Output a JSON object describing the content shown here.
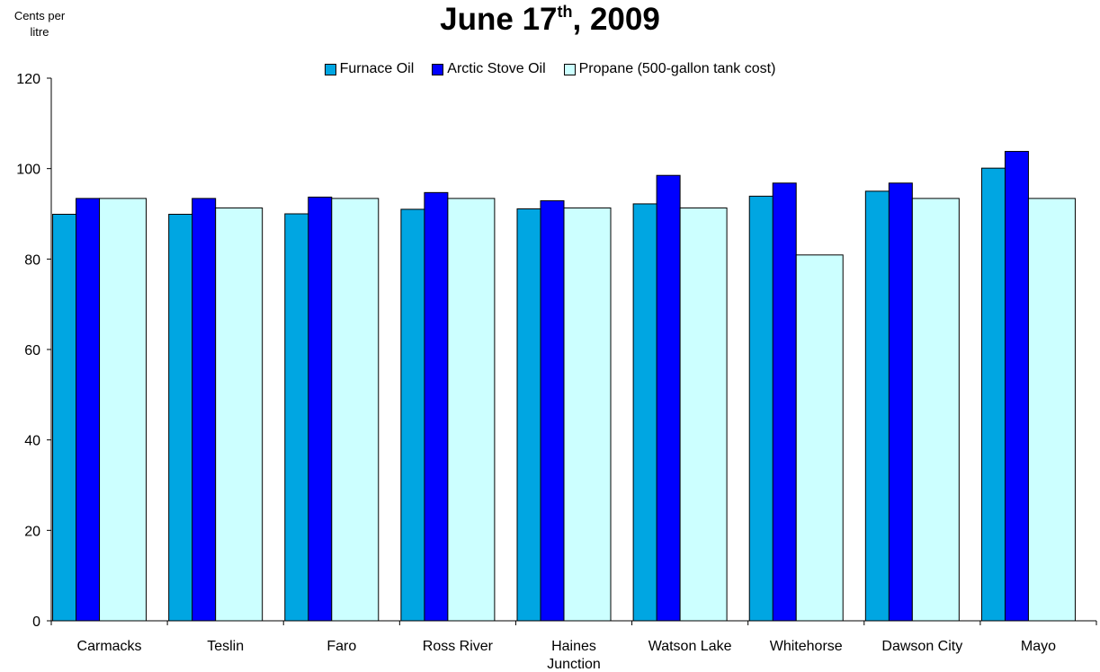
{
  "chart_data": {
    "type": "bar",
    "title": {
      "main": "June 17",
      "superscript": "th",
      "suffix": ", 2009"
    },
    "ylabel": "Cents per litre",
    "xlabel": "",
    "ylim": [
      0,
      120
    ],
    "yticks": [
      0,
      20,
      40,
      60,
      80,
      100,
      120
    ],
    "grid": false,
    "legend_position": "top-center",
    "categories": [
      "Carmacks",
      "Teslin",
      "Faro",
      "Ross River",
      "Haines Junction",
      "Watson Lake",
      "Whitehorse",
      "Dawson City",
      "Mayo"
    ],
    "category_label_lines": [
      [
        "Carmacks"
      ],
      [
        "Teslin"
      ],
      [
        "Faro"
      ],
      [
        "Ross River"
      ],
      [
        "Haines",
        "Junction"
      ],
      [
        "Watson Lake"
      ],
      [
        "Whitehorse"
      ],
      [
        "Dawson City"
      ],
      [
        "Mayo"
      ]
    ],
    "series": [
      {
        "name": "Furnace Oil",
        "color": "#00A6E2",
        "values": [
          89.9,
          89.9,
          90.0,
          91.0,
          91.1,
          92.2,
          93.9,
          95.0,
          100.1
        ]
      },
      {
        "name": "Arctic Stove Oil",
        "color": "#0000FF",
        "values": [
          93.4,
          93.4,
          93.7,
          94.7,
          92.9,
          98.5,
          96.8,
          96.8,
          103.8
        ]
      },
      {
        "name": "Propane (500-gallon tank cost)",
        "color": "#CCFFFF",
        "values": [
          93.4,
          91.3,
          93.4,
          93.4,
          91.3,
          91.3,
          80.9,
          93.4,
          93.4
        ]
      }
    ]
  }
}
